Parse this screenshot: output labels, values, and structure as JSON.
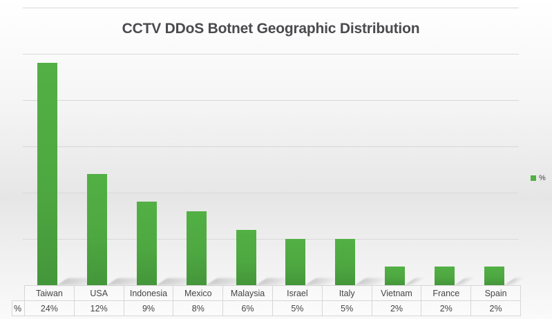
{
  "chart_data": {
    "type": "bar",
    "title": "CCTV DDoS Botnet Geographic Distribution",
    "xlabel": "",
    "ylabel": "",
    "categories": [
      "Taiwan",
      "USA",
      "Indonesia",
      "Mexico",
      "Malaysia",
      "Israel",
      "Italy",
      "Vietnam",
      "France",
      "Spain"
    ],
    "series": [
      {
        "name": "%",
        "values": [
          24,
          12,
          9,
          8,
          6,
          5,
          5,
          2,
          2,
          2
        ],
        "color": "#52b044"
      }
    ],
    "value_labels": [
      "24%",
      "12%",
      "9%",
      "8%",
      "6%",
      "5%",
      "5%",
      "2%",
      "2%",
      "2%"
    ],
    "ylim": [
      0,
      30
    ],
    "y_gridlines": [
      0,
      5,
      10,
      15,
      20,
      25,
      30
    ],
    "y_tick_labels_visible": false,
    "grid": true,
    "legend_position": "right",
    "data_table": true
  },
  "title": "CCTV DDoS Botnet Geographic Distribution",
  "legend": {
    "label": "%",
    "color": "#52b044"
  },
  "table": {
    "row_label": "%",
    "categories": [
      "Taiwan",
      "USA",
      "Indonesia",
      "Mexico",
      "Malaysia",
      "Israel",
      "Italy",
      "Vietnam",
      "France",
      "Spain"
    ],
    "values": [
      "24%",
      "12%",
      "9%",
      "8%",
      "6%",
      "5%",
      "5%",
      "2%",
      "2%",
      "2%"
    ]
  }
}
